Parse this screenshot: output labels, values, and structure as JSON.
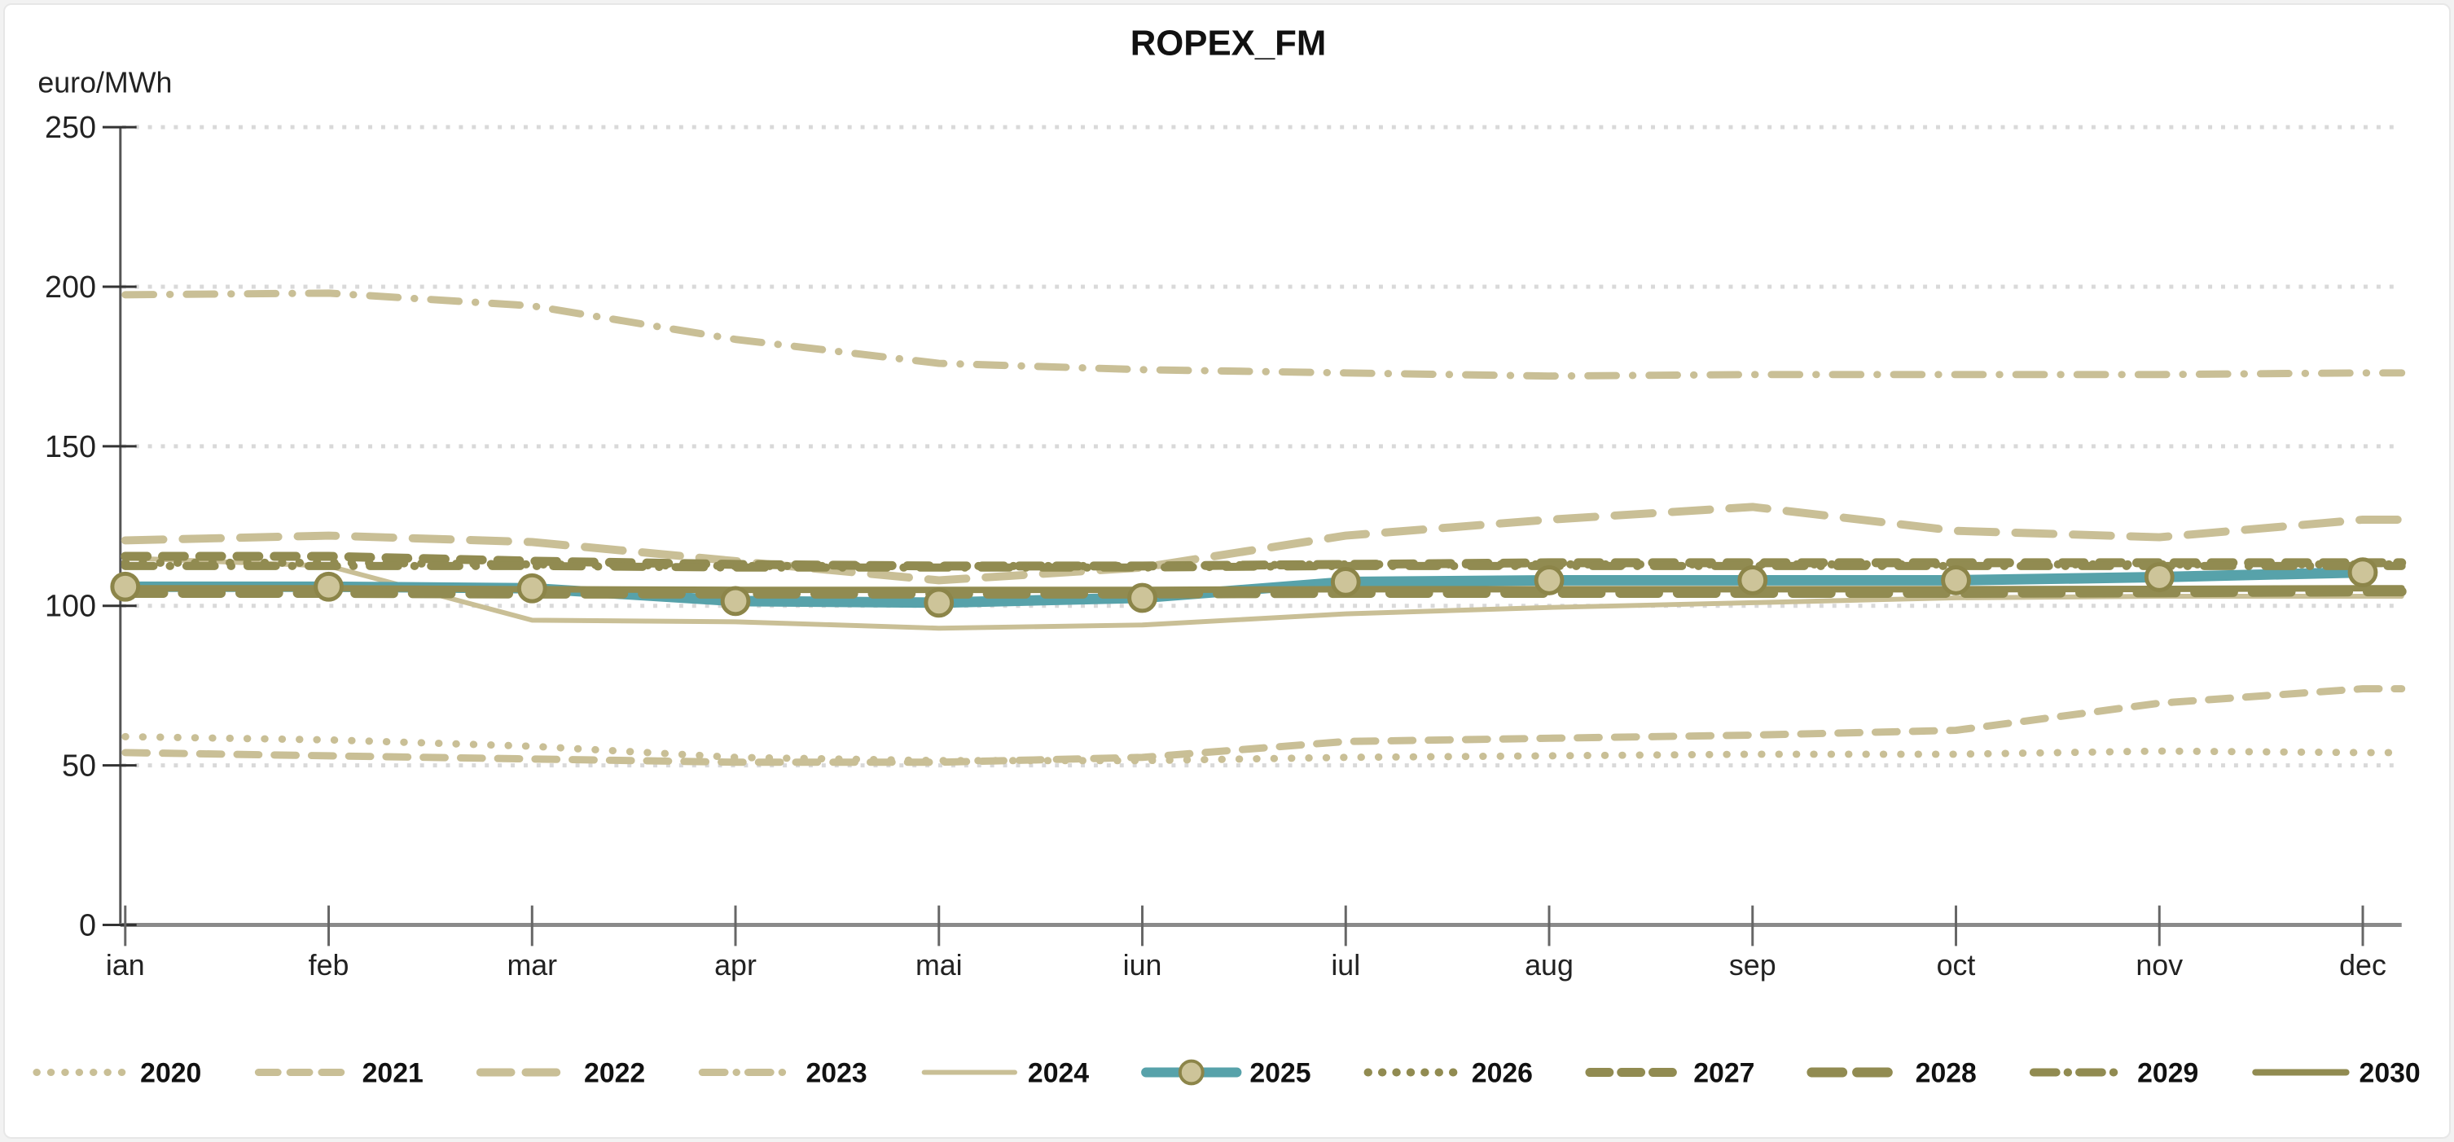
{
  "chart_data": {
    "type": "line",
    "title": "ROPEX_FM",
    "y_axis_unit_label": "euro/MWh",
    "categories": [
      "ian",
      "feb",
      "mar",
      "apr",
      "mai",
      "iun",
      "iul",
      "aug",
      "sep",
      "oct",
      "nov",
      "dec"
    ],
    "y_ticks": [
      0,
      50,
      100,
      150,
      200,
      250
    ],
    "ylim": [
      0,
      250
    ],
    "grid": "horizontal dotted gridlines at 50-unit steps",
    "legend_position": "bottom",
    "colors": {
      "light_tan": "#C9BF96",
      "dark_olive": "#918B51",
      "teal": "#57A2AA",
      "marker_fill": "#CDC499",
      "marker_stroke": "#8C8549",
      "gridline": "#D9D9D9",
      "x_axis_line": "#8A8A8A",
      "y_axis_line": "#555555",
      "text": "#111111"
    },
    "series": [
      {
        "name": "2020",
        "style": "dotted",
        "palette": "light_tan",
        "values": [
          59,
          58,
          56,
          52.5,
          51.5,
          51.5,
          52.5,
          53,
          53.5,
          53.5,
          54.5,
          54
        ]
      },
      {
        "name": "2021",
        "style": "dashed",
        "palette": "light_tan",
        "values": [
          54,
          53,
          52,
          51,
          51,
          52.5,
          57.5,
          58.5,
          59.5,
          61,
          69.5,
          74
        ]
      },
      {
        "name": "2022",
        "style": "long-dashed",
        "palette": "light_tan",
        "values": [
          120.5,
          122,
          120,
          114,
          108,
          112,
          122,
          127,
          131,
          123.5,
          121.5,
          127
        ]
      },
      {
        "name": "2023",
        "style": "dash-dotted",
        "palette": "light_tan",
        "values": [
          197.5,
          198,
          194,
          183.5,
          176,
          174,
          173,
          172,
          172.5,
          172.5,
          172.5,
          173
        ]
      },
      {
        "name": "2024",
        "style": "solid",
        "palette": "light_tan",
        "values": [
          115,
          112.5,
          95.5,
          95,
          93,
          94,
          97.5,
          99.5,
          101,
          102.5,
          103,
          103
        ]
      },
      {
        "name": "2025",
        "style": "solid-with-markers",
        "palette": "teal",
        "values": [
          106,
          106,
          105.5,
          101.5,
          101,
          102.5,
          107.5,
          108,
          108,
          108,
          109,
          110.5
        ]
      },
      {
        "name": "2026",
        "style": "dotted",
        "palette": "dark_olive",
        "values": [
          113.5,
          113.5,
          113,
          112.5,
          112.5,
          112.5,
          113,
          113,
          113,
          113,
          113,
          113
        ]
      },
      {
        "name": "2027",
        "style": "dashed",
        "palette": "dark_olive",
        "values": [
          115.5,
          115.5,
          114,
          113,
          112.5,
          112.5,
          113,
          113.5,
          113.5,
          113.5,
          113.5,
          113.5
        ]
      },
      {
        "name": "2028",
        "style": "long-dashed",
        "palette": "dark_olive",
        "values": [
          104,
          104,
          103.8,
          103.8,
          103.8,
          103.8,
          104,
          104,
          104,
          104,
          104.2,
          104.5
        ]
      },
      {
        "name": "2029",
        "style": "dash-dotted",
        "palette": "dark_olive",
        "values": [
          112.5,
          112.5,
          112.5,
          112,
          112,
          112,
          112.5,
          112.5,
          112.5,
          112.5,
          112.5,
          112.5
        ]
      },
      {
        "name": "2030",
        "style": "solid",
        "palette": "dark_olive",
        "values": [
          105.5,
          105.5,
          105.2,
          105,
          105,
          105,
          105.2,
          105.2,
          105.2,
          105.2,
          105.3,
          105.5
        ]
      }
    ]
  }
}
